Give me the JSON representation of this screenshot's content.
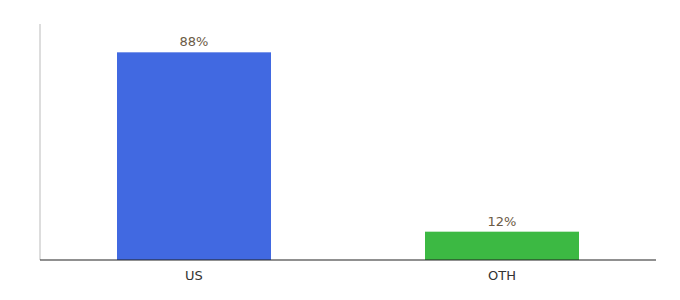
{
  "chart_data": {
    "type": "bar",
    "categories": [
      "US",
      "OTH"
    ],
    "values": [
      88,
      12
    ],
    "value_labels": [
      "88%",
      "12%"
    ],
    "colors": [
      "#4169e1",
      "#3cb943"
    ],
    "ylim": [
      0,
      100
    ],
    "grid": false,
    "data_labels": true,
    "tick_labels": "x"
  }
}
